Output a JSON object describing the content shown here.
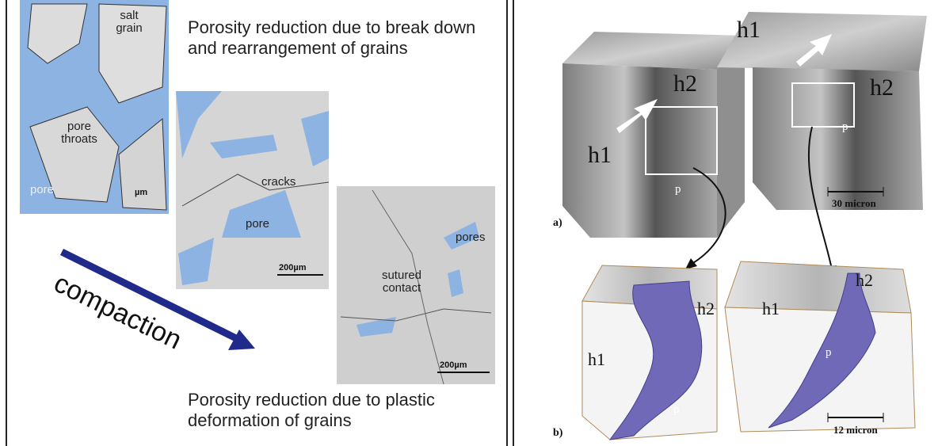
{
  "left_panel": {
    "heading_top": "Porosity reduction due to break down and rearrangement of grains",
    "heading_bottom": "Porosity reduction due to plastic deformation of grains",
    "arrow_label": "compaction",
    "images": [
      {
        "labels": [
          "salt\ngrain",
          "pore\nthroats",
          "pore",
          "µm"
        ]
      },
      {
        "labels": [
          "cracks",
          "pore",
          "200µm"
        ]
      },
      {
        "labels": [
          "pores",
          "sutured\ncontact",
          "200µm"
        ]
      }
    ]
  },
  "right_panel": {
    "row_a": {
      "label": "a)",
      "scale_bar": "30 micron",
      "annotations": [
        "h1",
        "h2",
        "p",
        "h1",
        "h2",
        "p"
      ]
    },
    "row_b": {
      "label": "b)",
      "scale_bar": "12 micron",
      "annotations": [
        "h1",
        "h2",
        "p",
        "h1",
        "h2",
        "p"
      ]
    }
  }
}
